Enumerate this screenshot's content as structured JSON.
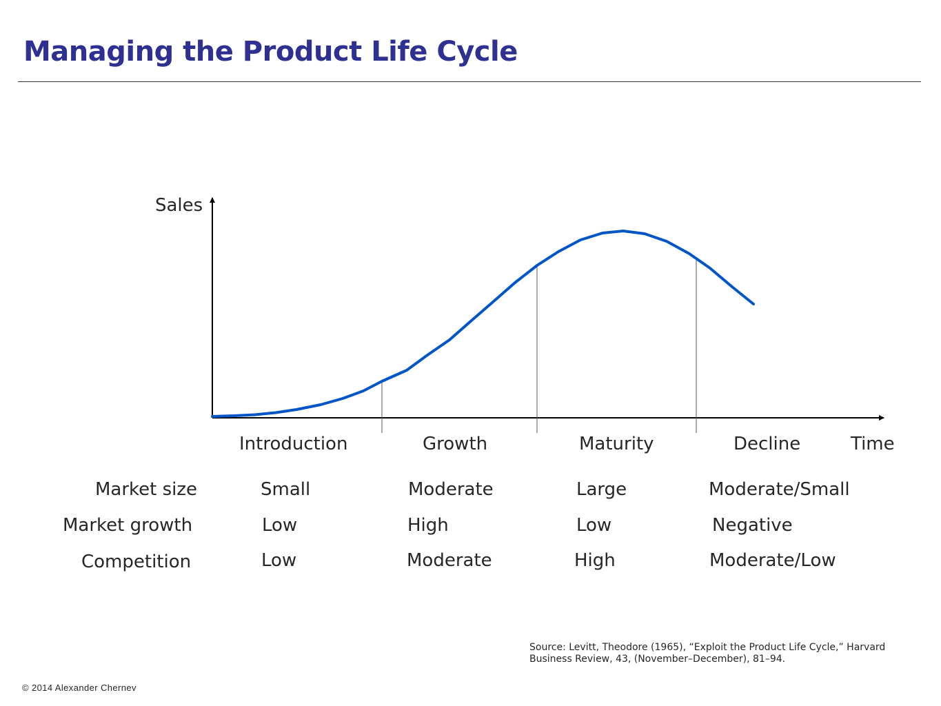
{
  "title": "Managing the Product Life Cycle",
  "diagram": {
    "y_axis_label": "Sales",
    "x_axis_label": "Time",
    "curve_color": "#0055c8",
    "stages": [
      "Introduction",
      "Growth",
      "Maturity",
      "Decline"
    ]
  },
  "table": {
    "rows": [
      {
        "label": "Market size",
        "values": [
          "Small",
          "Moderate",
          "Large",
          "Moderate/Small"
        ]
      },
      {
        "label": "Market growth",
        "values": [
          "Low",
          "High",
          "Low",
          "Negative"
        ]
      },
      {
        "label": "Competition",
        "values": [
          "Low",
          "Moderate",
          "High",
          "Moderate/Low"
        ]
      }
    ]
  },
  "source": "Source: Levitt, Theodore (1965), “Exploit the Product Life Cycle,” Harvard Business Review, 43, (November–December), 81–94.",
  "copyright": "© 2014 Alexander Chernev"
}
